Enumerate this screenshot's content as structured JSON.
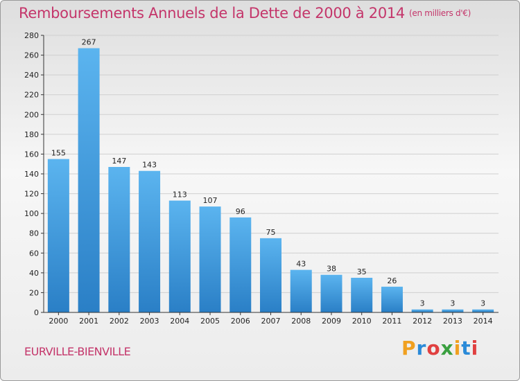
{
  "title": "Remboursements Annuels de la Dette de 2000 à 2014",
  "unit": "(en milliers d'€)",
  "commune": "EURVILLE-BIENVILLE",
  "brand": {
    "letters": [
      "P",
      "r",
      "o",
      "x",
      "i",
      "t",
      "i"
    ],
    "colors": [
      "#f0a020",
      "#2a8ad8",
      "#e04040",
      "#3aa040"
    ]
  },
  "chart_data": {
    "type": "bar",
    "title": "Remboursements Annuels de la Dette de 2000 à 2014",
    "xlabel": "",
    "ylabel": "",
    "categories": [
      "2000",
      "2001",
      "2002",
      "2003",
      "2004",
      "2005",
      "2006",
      "2007",
      "2008",
      "2009",
      "2010",
      "2011",
      "2012",
      "2013",
      "2014"
    ],
    "values": [
      155,
      267,
      147,
      143,
      113,
      107,
      96,
      75,
      43,
      38,
      35,
      26,
      3,
      3,
      3
    ],
    "ylim": [
      0,
      280
    ],
    "yticks": [
      0,
      20,
      40,
      60,
      80,
      100,
      120,
      140,
      160,
      180,
      200,
      220,
      240,
      260,
      280
    ],
    "grid": true,
    "bar_color": "#3f9de0"
  }
}
